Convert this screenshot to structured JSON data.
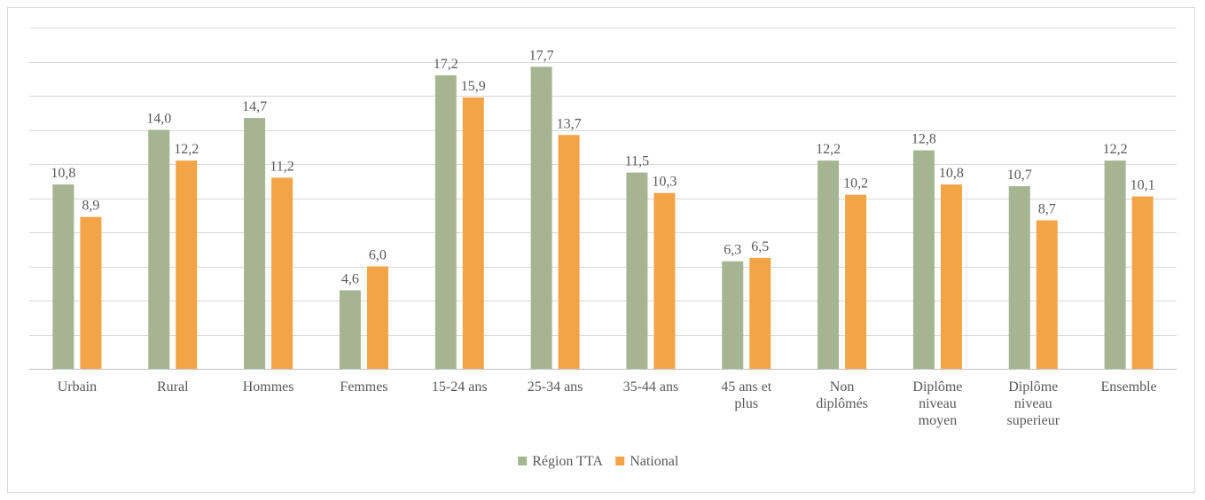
{
  "chart_data": {
    "type": "bar",
    "categories": [
      [
        "Urbain"
      ],
      [
        "Rural"
      ],
      [
        "Hommes"
      ],
      [
        "Femmes"
      ],
      [
        "15-24 ans"
      ],
      [
        "25-34 ans"
      ],
      [
        "35-44 ans"
      ],
      [
        "45 ans et",
        "plus"
      ],
      [
        "Non",
        "diplômés"
      ],
      [
        "Diplôme",
        "niveau",
        "moyen"
      ],
      [
        "Diplôme",
        "niveau",
        "superieur"
      ],
      [
        "Ensemble"
      ]
    ],
    "series": [
      {
        "name": "Région TTA",
        "color": "#a5b592",
        "values": [
          10.8,
          14.0,
          14.7,
          4.6,
          17.2,
          17.7,
          11.5,
          6.3,
          12.2,
          12.8,
          10.7,
          12.2
        ],
        "labels": [
          "10,8",
          "14,0",
          "14,7",
          "4,6",
          "17,2",
          "17,7",
          "11,5",
          "6,3",
          "12,2",
          "12,8",
          "10,7",
          "12,2"
        ]
      },
      {
        "name": "National",
        "color": "#f3a447",
        "values": [
          8.9,
          12.2,
          11.2,
          6.0,
          15.9,
          13.7,
          10.3,
          6.5,
          10.2,
          10.8,
          8.7,
          10.1
        ],
        "labels": [
          "8,9",
          "12,2",
          "11,2",
          "6,0",
          "15,9",
          "13,7",
          "10,3",
          "6,5",
          "10,2",
          "10,8",
          "8,7",
          "10,1"
        ]
      }
    ],
    "ylim": [
      0,
      20
    ],
    "grid_step": 2,
    "grid": true,
    "y_tick_labels_shown": false,
    "legend": "bottom-center",
    "title": "",
    "xlabel": "",
    "ylabel": ""
  }
}
